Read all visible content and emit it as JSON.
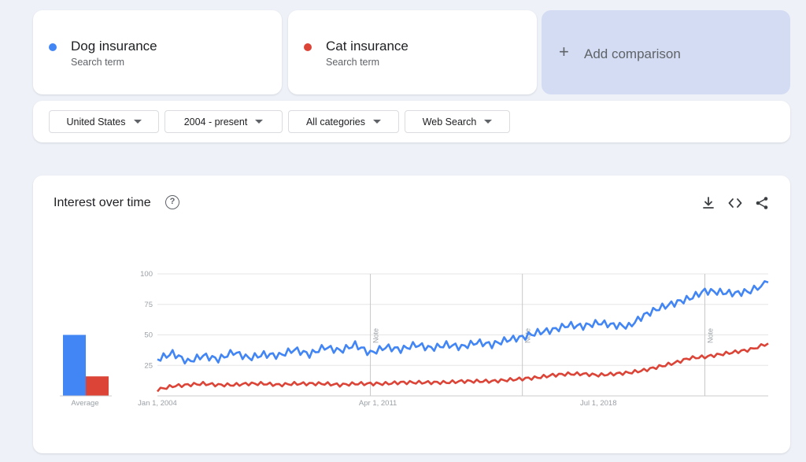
{
  "terms": [
    {
      "name": "Dog insurance",
      "sub": "Search term",
      "color": "#4285f4"
    },
    {
      "name": "Cat insurance",
      "sub": "Search term",
      "color": "#db4437"
    }
  ],
  "add_comparison": {
    "label": "Add comparison",
    "icon": "plus-icon"
  },
  "filters": [
    {
      "label": "United States"
    },
    {
      "label": "2004 - present"
    },
    {
      "label": "All categories"
    },
    {
      "label": "Web Search"
    }
  ],
  "interest": {
    "title": "Interest over time",
    "help_icon": "?",
    "average_label": "Average",
    "note_label": "Note",
    "toolbar": [
      "download-icon",
      "embed-code-icon",
      "share-icon"
    ]
  },
  "chart_data": {
    "type": "line",
    "title": "Interest over time",
    "xlabel": "",
    "ylabel": "",
    "ylim": [
      0,
      100
    ],
    "yticks": [
      25,
      50,
      75,
      100
    ],
    "grid": true,
    "x_start": "2004-01",
    "x_end": "2024-02",
    "x_tick_labels": [
      {
        "label": "Jan 1, 2004",
        "date": "2004-01"
      },
      {
        "label": "Apr 1, 2011",
        "date": "2011-04"
      },
      {
        "label": "Jul 1, 2018",
        "date": "2018-07"
      }
    ],
    "notes": [
      "2011-01",
      "2016-01",
      "2022-01"
    ],
    "averages": [
      50,
      16
    ],
    "series": [
      {
        "name": "Dog insurance",
        "color": "#4285f4",
        "points": [
          [
            "2004-01",
            30
          ],
          [
            "2004-07",
            35
          ],
          [
            "2005-01",
            28
          ],
          [
            "2005-07",
            33
          ],
          [
            "2006-01",
            30
          ],
          [
            "2006-07",
            36
          ],
          [
            "2007-01",
            31
          ],
          [
            "2007-07",
            34
          ],
          [
            "2008-01",
            33
          ],
          [
            "2008-07",
            38
          ],
          [
            "2009-01",
            34
          ],
          [
            "2009-07",
            40
          ],
          [
            "2010-01",
            37
          ],
          [
            "2010-07",
            42
          ],
          [
            "2011-01",
            35
          ],
          [
            "2011-07",
            40
          ],
          [
            "2012-01",
            38
          ],
          [
            "2012-07",
            42
          ],
          [
            "2013-01",
            39
          ],
          [
            "2013-07",
            42
          ],
          [
            "2014-01",
            40
          ],
          [
            "2014-07",
            44
          ],
          [
            "2015-01",
            42
          ],
          [
            "2015-07",
            46
          ],
          [
            "2016-01",
            48
          ],
          [
            "2016-07",
            52
          ],
          [
            "2017-01",
            54
          ],
          [
            "2017-07",
            58
          ],
          [
            "2018-01",
            57
          ],
          [
            "2018-07",
            60
          ],
          [
            "2019-01",
            58
          ],
          [
            "2019-07",
            57
          ],
          [
            "2020-01",
            66
          ],
          [
            "2020-07",
            72
          ],
          [
            "2021-01",
            76
          ],
          [
            "2021-07",
            80
          ],
          [
            "2022-01",
            86
          ],
          [
            "2022-07",
            85
          ],
          [
            "2023-01",
            84
          ],
          [
            "2023-07",
            86
          ],
          [
            "2024-02",
            93
          ]
        ]
      },
      {
        "name": "Cat insurance",
        "color": "#db4437",
        "points": [
          [
            "2004-01",
            5
          ],
          [
            "2004-07",
            8
          ],
          [
            "2005-01",
            9
          ],
          [
            "2005-07",
            10
          ],
          [
            "2006-01",
            9
          ],
          [
            "2006-07",
            9
          ],
          [
            "2007-01",
            10
          ],
          [
            "2007-07",
            10
          ],
          [
            "2008-01",
            9
          ],
          [
            "2008-07",
            10
          ],
          [
            "2009-01",
            10
          ],
          [
            "2009-07",
            10
          ],
          [
            "2010-01",
            9
          ],
          [
            "2010-07",
            10
          ],
          [
            "2011-01",
            10
          ],
          [
            "2011-07",
            10
          ],
          [
            "2012-01",
            11
          ],
          [
            "2012-07",
            11
          ],
          [
            "2013-01",
            11
          ],
          [
            "2013-07",
            11
          ],
          [
            "2014-01",
            12
          ],
          [
            "2014-07",
            12
          ],
          [
            "2015-01",
            12
          ],
          [
            "2015-07",
            13
          ],
          [
            "2016-01",
            14
          ],
          [
            "2016-07",
            15
          ],
          [
            "2017-01",
            17
          ],
          [
            "2017-07",
            18
          ],
          [
            "2018-01",
            18
          ],
          [
            "2018-07",
            17
          ],
          [
            "2019-01",
            18
          ],
          [
            "2019-07",
            19
          ],
          [
            "2020-01",
            21
          ],
          [
            "2020-07",
            24
          ],
          [
            "2021-01",
            27
          ],
          [
            "2021-07",
            31
          ],
          [
            "2022-01",
            32
          ],
          [
            "2022-07",
            34
          ],
          [
            "2023-01",
            36
          ],
          [
            "2023-07",
            38
          ],
          [
            "2024-02",
            43
          ]
        ]
      }
    ]
  }
}
